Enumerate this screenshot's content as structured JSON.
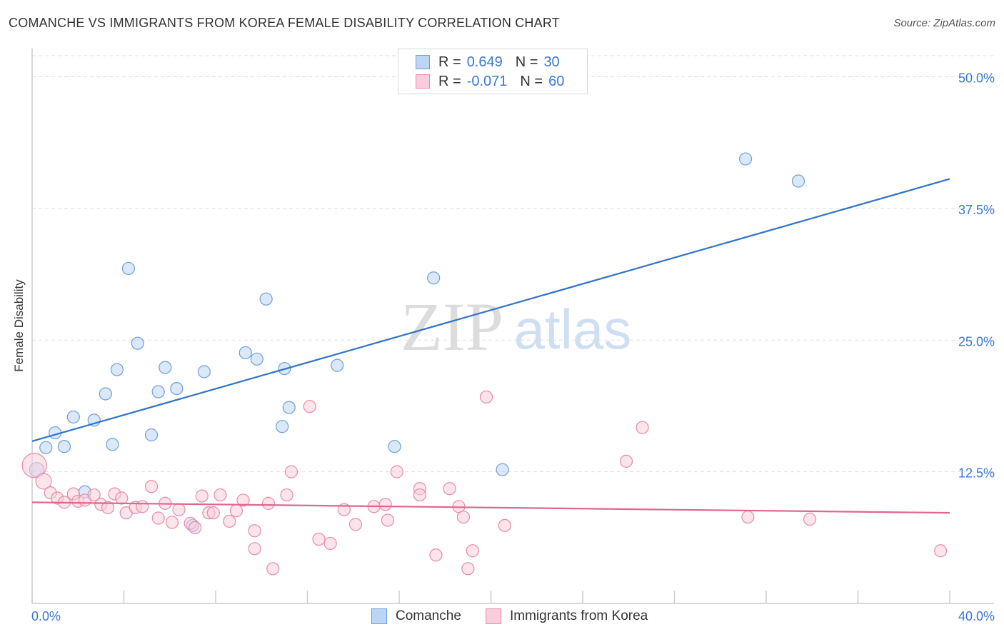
{
  "title": "COMANCHE VS IMMIGRANTS FROM KOREA FEMALE DISABILITY CORRELATION CHART",
  "source": "Source: ZipAtlas.com",
  "watermark": {
    "zip": "ZIP",
    "atlas": "atlas"
  },
  "legend": {
    "rows": [
      {
        "r_label": "R =",
        "r_value": "0.649",
        "n_label": "N =",
        "n_value": "30",
        "color": "#a9c8f0",
        "stroke": "#6f9fd8"
      },
      {
        "r_label": "R =",
        "r_value": "-0.071",
        "n_label": "N =",
        "n_value": "60",
        "color": "#f7bfd0",
        "stroke": "#e88aa8"
      }
    ]
  },
  "bottom_legend": [
    {
      "label": "Comanche",
      "color": "#bcd5f5",
      "stroke": "#6f9fd8"
    },
    {
      "label": "Immigrants from Korea",
      "color": "#f9cddb",
      "stroke": "#e88aa8"
    }
  ],
  "chart_data": {
    "type": "scatter",
    "title": "COMANCHE VS IMMIGRANTS FROM KOREA FEMALE DISABILITY CORRELATION CHART",
    "xlabel": "",
    "ylabel": "Female Disability",
    "xlim": [
      0,
      40
    ],
    "ylim": [
      0,
      52
    ],
    "x_tick_labels": [
      "0.0%",
      "40.0%"
    ],
    "y_ticks": [
      12.5,
      25.0,
      37.5,
      50.0
    ],
    "y_tick_labels": [
      "12.5%",
      "25.0%",
      "37.5%",
      "50.0%"
    ],
    "series": [
      {
        "name": "Comanche",
        "color": "#6f9fd8",
        "fill": "#bcd5f5",
        "line_color": "#2f72cc",
        "trend": {
          "x": [
            0,
            40
          ],
          "y": [
            15.4,
            40.3
          ]
        },
        "points": [
          {
            "x": 0.2,
            "y": 12.7
          },
          {
            "x": 0.6,
            "y": 14.8
          },
          {
            "x": 1.0,
            "y": 16.2
          },
          {
            "x": 1.4,
            "y": 14.9
          },
          {
            "x": 1.8,
            "y": 17.7
          },
          {
            "x": 2.3,
            "y": 10.6
          },
          {
            "x": 2.7,
            "y": 17.4
          },
          {
            "x": 3.2,
            "y": 19.9
          },
          {
            "x": 3.5,
            "y": 15.1
          },
          {
            "x": 3.7,
            "y": 22.2
          },
          {
            "x": 4.2,
            "y": 31.8
          },
          {
            "x": 4.6,
            "y": 24.7
          },
          {
            "x": 5.2,
            "y": 16.0
          },
          {
            "x": 5.5,
            "y": 20.1
          },
          {
            "x": 5.8,
            "y": 22.4
          },
          {
            "x": 6.3,
            "y": 20.4
          },
          {
            "x": 7.0,
            "y": 7.4
          },
          {
            "x": 7.5,
            "y": 22.0
          },
          {
            "x": 9.3,
            "y": 23.8
          },
          {
            "x": 9.8,
            "y": 23.2
          },
          {
            "x": 10.2,
            "y": 28.9
          },
          {
            "x": 10.9,
            "y": 16.8
          },
          {
            "x": 11.0,
            "y": 22.3
          },
          {
            "x": 11.2,
            "y": 18.6
          },
          {
            "x": 13.3,
            "y": 22.6
          },
          {
            "x": 15.8,
            "y": 14.9
          },
          {
            "x": 17.5,
            "y": 30.9
          },
          {
            "x": 20.5,
            "y": 12.7
          },
          {
            "x": 31.1,
            "y": 42.2
          },
          {
            "x": 33.4,
            "y": 40.1
          }
        ]
      },
      {
        "name": "Immigrants from Korea",
        "color": "#e88aa8",
        "fill": "#f9cddb",
        "line_color": "#e0668f",
        "trend": {
          "x": [
            0,
            40
          ],
          "y": [
            9.6,
            8.6
          ]
        },
        "points": [
          {
            "x": 0.1,
            "y": 13.1
          },
          {
            "x": 0.5,
            "y": 11.6
          },
          {
            "x": 0.8,
            "y": 10.5
          },
          {
            "x": 1.1,
            "y": 10.0
          },
          {
            "x": 1.4,
            "y": 9.6
          },
          {
            "x": 1.8,
            "y": 10.4
          },
          {
            "x": 2.0,
            "y": 9.7
          },
          {
            "x": 2.3,
            "y": 9.8
          },
          {
            "x": 2.7,
            "y": 10.3
          },
          {
            "x": 3.0,
            "y": 9.4
          },
          {
            "x": 3.3,
            "y": 9.1
          },
          {
            "x": 3.6,
            "y": 10.4
          },
          {
            "x": 3.9,
            "y": 10.0
          },
          {
            "x": 4.1,
            "y": 8.6
          },
          {
            "x": 4.5,
            "y": 9.1
          },
          {
            "x": 4.8,
            "y": 9.2
          },
          {
            "x": 5.2,
            "y": 11.1
          },
          {
            "x": 5.5,
            "y": 8.1
          },
          {
            "x": 5.8,
            "y": 9.5
          },
          {
            "x": 6.1,
            "y": 7.7
          },
          {
            "x": 6.4,
            "y": 8.9
          },
          {
            "x": 6.9,
            "y": 7.6
          },
          {
            "x": 7.1,
            "y": 7.2
          },
          {
            "x": 7.4,
            "y": 10.2
          },
          {
            "x": 7.7,
            "y": 8.6
          },
          {
            "x": 7.9,
            "y": 8.6
          },
          {
            "x": 8.2,
            "y": 10.3
          },
          {
            "x": 8.6,
            "y": 7.8
          },
          {
            "x": 8.9,
            "y": 8.8
          },
          {
            "x": 9.2,
            "y": 9.8
          },
          {
            "x": 9.7,
            "y": 6.9
          },
          {
            "x": 9.7,
            "y": 5.2
          },
          {
            "x": 10.3,
            "y": 9.5
          },
          {
            "x": 10.5,
            "y": 3.3
          },
          {
            "x": 11.1,
            "y": 10.3
          },
          {
            "x": 11.3,
            "y": 12.5
          },
          {
            "x": 12.1,
            "y": 18.7
          },
          {
            "x": 12.5,
            "y": 6.1
          },
          {
            "x": 13.0,
            "y": 5.7
          },
          {
            "x": 13.6,
            "y": 8.9
          },
          {
            "x": 14.1,
            "y": 7.5
          },
          {
            "x": 14.9,
            "y": 9.2
          },
          {
            "x": 15.4,
            "y": 9.4
          },
          {
            "x": 15.5,
            "y": 7.9
          },
          {
            "x": 15.9,
            "y": 12.5
          },
          {
            "x": 16.9,
            "y": 10.9
          },
          {
            "x": 16.9,
            "y": 10.3
          },
          {
            "x": 17.6,
            "y": 4.6
          },
          {
            "x": 18.2,
            "y": 10.9
          },
          {
            "x": 18.6,
            "y": 9.2
          },
          {
            "x": 18.8,
            "y": 8.2
          },
          {
            "x": 19.0,
            "y": 3.3
          },
          {
            "x": 19.2,
            "y": 5.0
          },
          {
            "x": 19.8,
            "y": 19.6
          },
          {
            "x": 20.6,
            "y": 7.4
          },
          {
            "x": 25.9,
            "y": 13.5
          },
          {
            "x": 26.6,
            "y": 16.7
          },
          {
            "x": 31.2,
            "y": 8.2
          },
          {
            "x": 33.9,
            "y": 8.0
          },
          {
            "x": 39.6,
            "y": 5.0
          }
        ]
      }
    ]
  }
}
